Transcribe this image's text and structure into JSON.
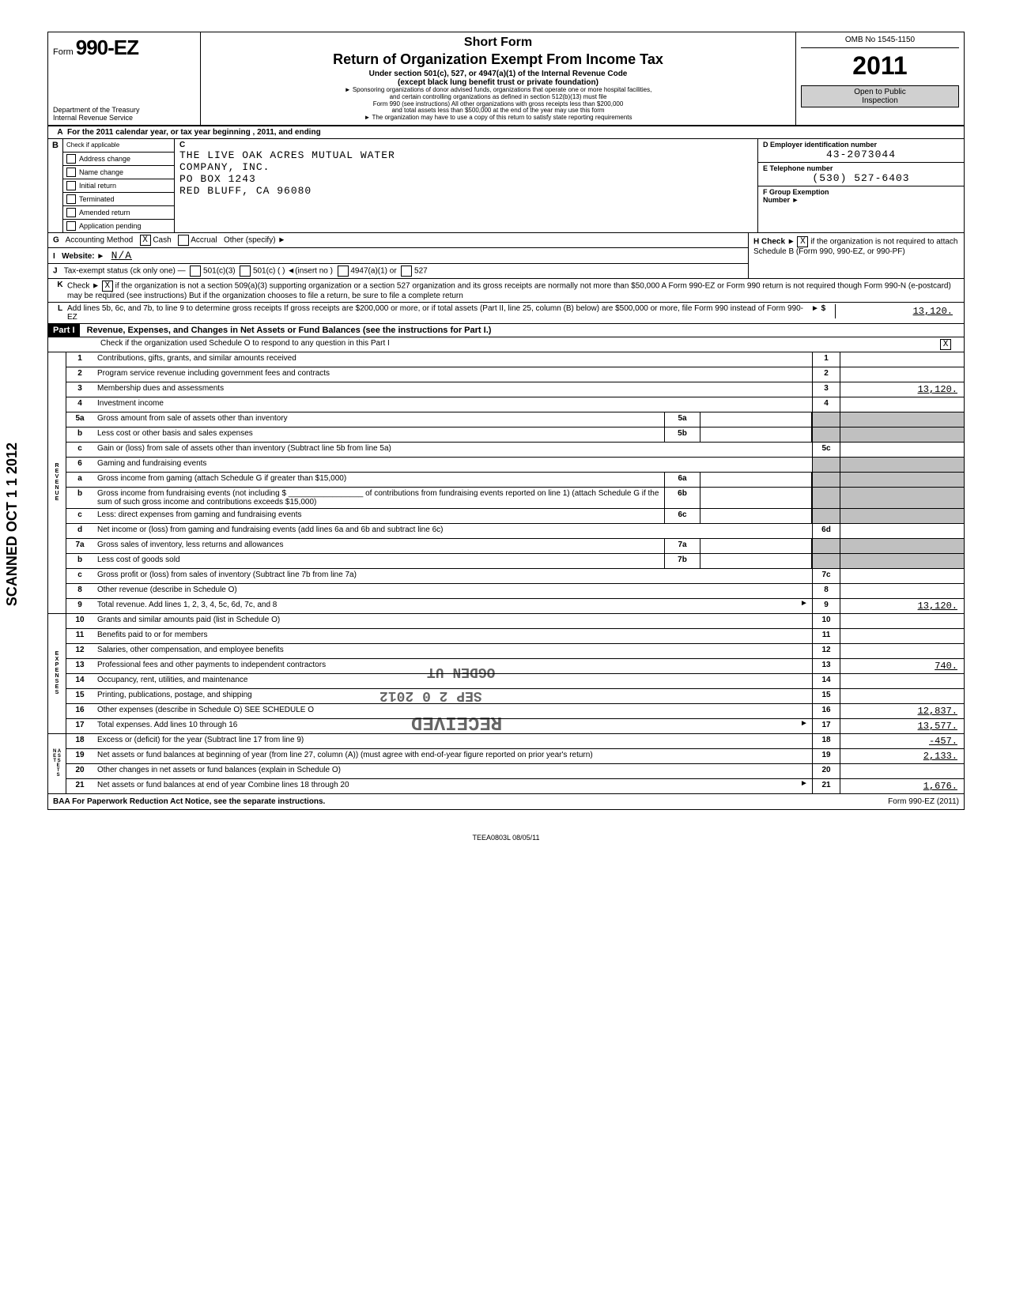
{
  "header": {
    "form_prefix": "Form",
    "form_number": "990-EZ",
    "dept": "Department of the Treasury",
    "irs": "Internal Revenue Service",
    "short_form": "Short Form",
    "main_title": "Return of Organization Exempt From Income Tax",
    "sub_title": "Under section 501(c), 527, or 4947(a)(1) of the Internal Revenue Code",
    "paren": "(except black lung benefit trust or private foundation)",
    "fine1": "► Sponsoring organizations of donor advised funds, organizations that operate one or more hospital facilities,",
    "fine2": "and certain controlling organizations as defined in section 512(b)(13) must file",
    "fine3": "Form 990 (see instructions)  All other organizations with gross receipts less than $200,000",
    "fine4": "and total assets less than $500,000 at the end of the year may use this form",
    "fine5": "► The organization may have to use a copy of this return to satisfy state reporting requirements",
    "omb": "OMB No  1545-1150",
    "year": "2011",
    "open_public": "Open to Public",
    "inspection": "Inspection"
  },
  "line_a": "For the 2011 calendar year, or tax year beginning                                                    , 2011, and ending",
  "section_b": {
    "check_if": "Check if applicable",
    "c_label": "C",
    "checkboxes": [
      "Address change",
      "Name change",
      "Initial return",
      "Terminated",
      "Amended return",
      "Application pending"
    ],
    "org_name1": "THE LIVE OAK ACRES MUTUAL WATER",
    "org_name2": "COMPANY, INC.",
    "address1": "PO BOX 1243",
    "address2": "RED BLUFF, CA 96080",
    "d_label": "D  Employer identification number",
    "ein": "43-2073044",
    "e_label": "E  Telephone number",
    "phone": "(530) 527-6403",
    "f_label": "F  Group Exemption",
    "f_label2": "Number                           ►"
  },
  "line_g": {
    "label": "G",
    "text": "Accounting Method",
    "cash": "Cash",
    "accrual": "Accrual",
    "other": "Other (specify) ►",
    "cash_checked": "X"
  },
  "line_h": {
    "text": "H  Check ►",
    "checked": "X",
    "rest": "if the organization is not required to attach Schedule B (Form 990, 990-EZ, or 990-PF)"
  },
  "line_i": {
    "label": "I",
    "text": "Website: ►",
    "value": "N/A"
  },
  "line_j": {
    "label": "J",
    "text": "Tax-exempt status (ck only one) —",
    "opts": [
      "501(c)(3)",
      "501(c) (        ) ◄(insert no )",
      "4947(a)(1) or",
      "527"
    ]
  },
  "line_k": {
    "label": "K",
    "text": "Check ►",
    "checked": "X",
    "rest": "if the organization is not a section 509(a)(3) supporting organization or a section 527 organization and its gross receipts are normally not more than $50,000  A Form 990-EZ or Form 990 return is not required though Form 990-N (e-postcard) may be required (see instructions)  But if the organization chooses to file a return, be sure to file a complete return"
  },
  "line_l": {
    "label": "L",
    "text": "Add lines 5b, 6c, and 7b, to line 9 to determine gross receipts  If gross receipts are $200,000 or more, or if total assets (Part II, line 25, column (B) below) are $500,000 or more, file Form 990 instead of Form 990-EZ",
    "arrow": "► $",
    "value": "13,120."
  },
  "part1": {
    "label": "Part I",
    "title": "Revenue, Expenses, and Changes in Net Assets or Fund Balances (see the instructions for Part I.)",
    "check_line": "Check if the organization used Schedule O to respond to any question in this Part I",
    "check_val": "X"
  },
  "lines": {
    "l1": {
      "n": "1",
      "d": "Contributions, gifts, grants, and similar amounts received",
      "rn": "1",
      "rv": ""
    },
    "l2": {
      "n": "2",
      "d": "Program service revenue including government fees and contracts",
      "rn": "2",
      "rv": ""
    },
    "l3": {
      "n": "3",
      "d": "Membership dues and assessments",
      "rn": "3",
      "rv": "13,120."
    },
    "l4": {
      "n": "4",
      "d": "Investment income",
      "rn": "4",
      "rv": ""
    },
    "l5a": {
      "n": "5a",
      "d": "Gross amount from sale of assets other than inventory",
      "mn": "5a",
      "mv": ""
    },
    "l5b": {
      "n": "b",
      "d": "Less  cost or other basis and sales expenses",
      "mn": "5b",
      "mv": ""
    },
    "l5c": {
      "n": "c",
      "d": "Gain or (loss) from sale of assets other than inventory (Subtract line 5b from line 5a)",
      "rn": "5c",
      "rv": ""
    },
    "l6": {
      "n": "6",
      "d": "Gaming and fundraising events"
    },
    "l6a": {
      "n": "a",
      "d": "Gross income from gaming (attach Schedule G if greater than $15,000)",
      "mn": "6a",
      "mv": ""
    },
    "l6b": {
      "n": "b",
      "d": "Gross income from fundraising events (not including  $ _________________ of contributions from fundraising events reported on line 1) (attach Schedule G if the sum of such gross income and contributions exceeds $15,000)",
      "mn": "6b",
      "mv": ""
    },
    "l6c": {
      "n": "c",
      "d": "Less:  direct expenses from gaming and fundraising events",
      "mn": "6c",
      "mv": ""
    },
    "l6d": {
      "n": "d",
      "d": "Net income or (loss) from gaming and fundraising events (add lines 6a and 6b and subtract line 6c)",
      "rn": "6d",
      "rv": ""
    },
    "l7a": {
      "n": "7a",
      "d": "Gross sales of inventory, less returns and allowances",
      "mn": "7a",
      "mv": ""
    },
    "l7b": {
      "n": "b",
      "d": "Less  cost of goods sold",
      "mn": "7b",
      "mv": ""
    },
    "l7c": {
      "n": "c",
      "d": "Gross profit or (loss) from sales of inventory (Subtract line 7b from line 7a)",
      "rn": "7c",
      "rv": ""
    },
    "l8": {
      "n": "8",
      "d": "Other revenue (describe in Schedule O)",
      "rn": "8",
      "rv": ""
    },
    "l9": {
      "n": "9",
      "d": "Total revenue. Add lines 1, 2, 3, 4, 5c, 6d, 7c, and 8",
      "rn": "9",
      "rv": "13,120.",
      "arrow": "►"
    },
    "l10": {
      "n": "10",
      "d": "Grants and similar amounts paid (list in Schedule O)",
      "rn": "10",
      "rv": ""
    },
    "l11": {
      "n": "11",
      "d": "Benefits paid to or for members",
      "rn": "11",
      "rv": ""
    },
    "l12": {
      "n": "12",
      "d": "Salaries, other compensation, and employee benefits",
      "rn": "12",
      "rv": ""
    },
    "l13": {
      "n": "13",
      "d": "Professional fees and other payments to independent contractors",
      "rn": "13",
      "rv": "740."
    },
    "l14": {
      "n": "14",
      "d": "Occupancy, rent, utilities, and maintenance",
      "rn": "14",
      "rv": ""
    },
    "l15": {
      "n": "15",
      "d": "Printing, publications, postage, and shipping",
      "rn": "15",
      "rv": ""
    },
    "l16": {
      "n": "16",
      "d": "Other expenses (describe in Schedule O)                                              SEE SCHEDULE O",
      "rn": "16",
      "rv": "12,837."
    },
    "l17": {
      "n": "17",
      "d": "Total expenses. Add lines 10 through 16",
      "rn": "17",
      "rv": "13,577.",
      "arrow": "►"
    },
    "l18": {
      "n": "18",
      "d": "Excess or (deficit) for the year (Subtract line 17 from line 9)",
      "rn": "18",
      "rv": "-457."
    },
    "l19": {
      "n": "19",
      "d": "Net assets or fund balances at beginning of year (from line 27, column (A)) (must agree with end-of-year figure reported on prior year's return)",
      "rn": "19",
      "rv": "2,133."
    },
    "l20": {
      "n": "20",
      "d": "Other changes in net assets or fund balances (explain in Schedule O)",
      "rn": "20",
      "rv": ""
    },
    "l21": {
      "n": "21",
      "d": "Net assets or fund balances at end of year  Combine lines 18 through 20",
      "rn": "21",
      "rv": "1,676.",
      "arrow": "►"
    }
  },
  "vertical_labels": {
    "revenue": "REVENUE",
    "expenses": "EXPENSES",
    "net": "NET\nASSETS"
  },
  "footer": {
    "baa": "BAA  For Paperwork Reduction Act Notice, see the separate instructions.",
    "mid": "TEEA0803L   08/05/11",
    "form": "Form 990-EZ (2011)"
  },
  "scanned": "SCANNED OCT 1 1 2012",
  "stamps": {
    "received": "RECEIVED",
    "date": "SEP 2 0 2012",
    "ogden": "OGDEN UT"
  }
}
